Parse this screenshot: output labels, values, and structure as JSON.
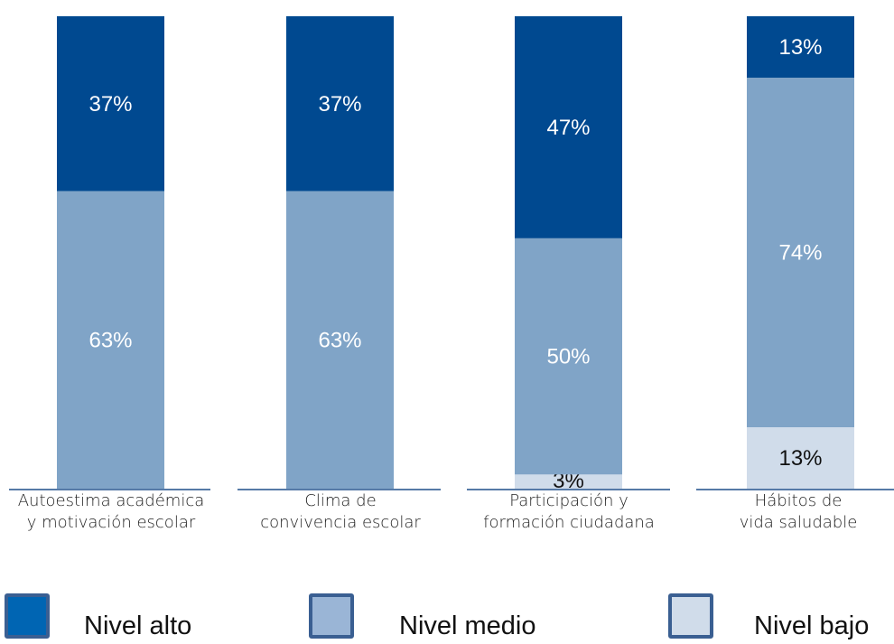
{
  "chart_data": {
    "type": "bar",
    "stacked": true,
    "normalized_percent": true,
    "categories": [
      [
        "Autoestima académica",
        "y motivación escolar"
      ],
      [
        "Clima de",
        "convivencia escolar"
      ],
      [
        "Participación y",
        "formación ciudadana"
      ],
      [
        "Hábitos de",
        "vida saludable"
      ]
    ],
    "series": [
      {
        "name": "Nivel bajo",
        "values": [
          0,
          0,
          3,
          13
        ],
        "labels": [
          "",
          "",
          "3%",
          "13%"
        ],
        "color": "#d0dcea",
        "swatch_color": "#d0dcea",
        "label_color": "#111111"
      },
      {
        "name": "Nivel medio",
        "values": [
          63,
          63,
          50,
          74
        ],
        "labels": [
          "63%",
          "63%",
          "50%",
          "74%"
        ],
        "color": "#80a4c7",
        "swatch_color": "#9ab5d6",
        "label_color": "#ffffff"
      },
      {
        "name": "Nivel alto",
        "values": [
          37,
          37,
          47,
          13
        ],
        "labels": [
          "37%",
          "37%",
          "47%",
          "13%"
        ],
        "color": "#004990",
        "swatch_color": "#0065b3",
        "label_color": "#ffffff"
      }
    ],
    "ylim": [
      0,
      100
    ],
    "legend_position": "bottom",
    "legend_order": [
      "Nivel alto",
      "Nivel medio",
      "Nivel bajo"
    ],
    "grid": false,
    "axis_color": "#1f4f8a"
  }
}
